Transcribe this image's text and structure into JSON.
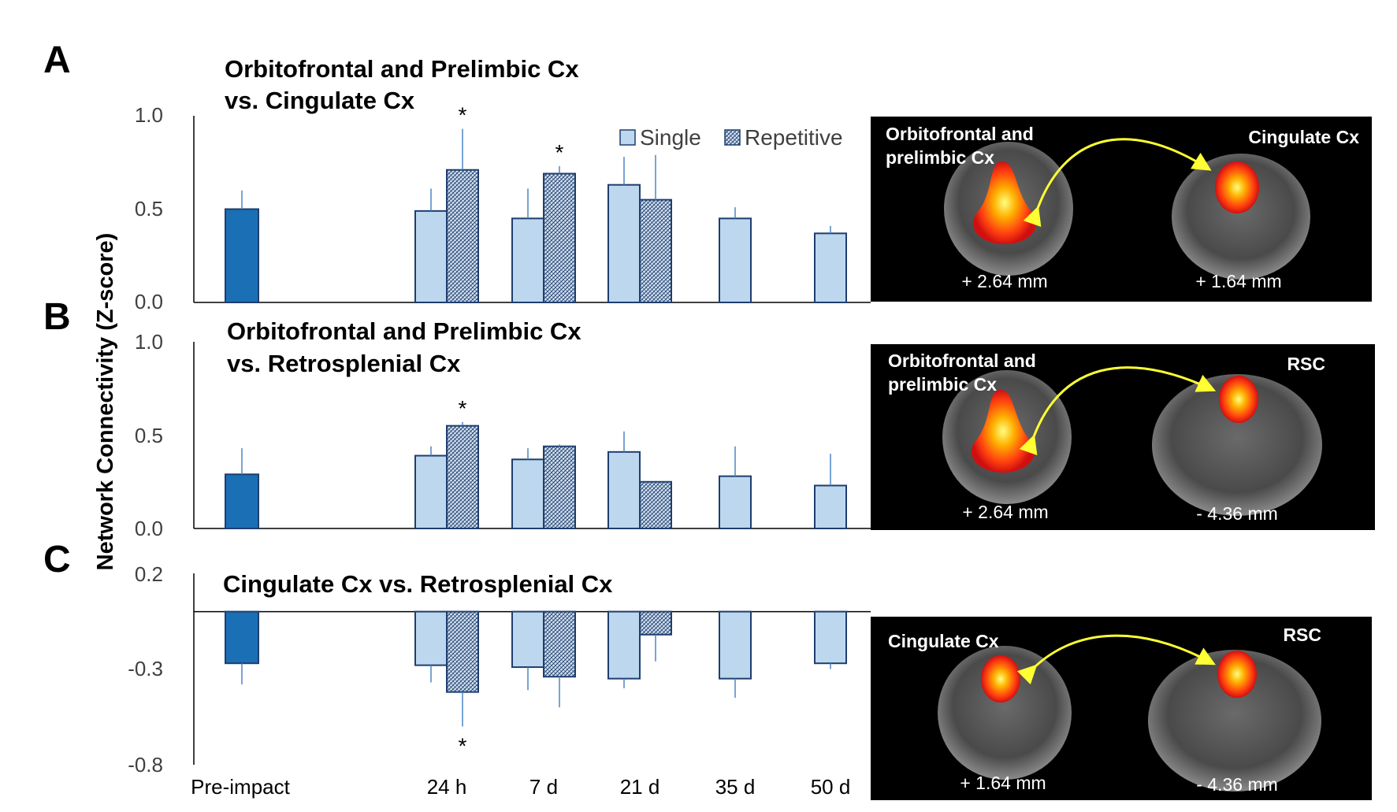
{
  "figure": {
    "y_axis_label": "Network Connectivity (Z-score)",
    "legend": {
      "single_label": "Single",
      "repetitive_label": "Repetitive"
    },
    "x_tick_labels": [
      "Pre-impact",
      "24 h",
      "7 d",
      "21 d",
      "35 d",
      "50 d"
    ]
  },
  "colors": {
    "pre_impact_fill": "#1a6fb5",
    "single_fill": "#bdd7ee",
    "bar_border": "#1f3e6e",
    "error_bar": "#4a86c5",
    "image_bg": "#000000",
    "arrow": "#ffff33"
  },
  "chart_data": [
    {
      "panel": "A",
      "type": "bar",
      "title_lines": [
        "Orbitofrontal and Prelimbic Cx",
        "vs. Cingulate Cx"
      ],
      "categories": [
        "Pre-impact",
        "24 h",
        "7 d",
        "21 d",
        "35 d",
        "50 d"
      ],
      "ylim": [
        0.0,
        1.0
      ],
      "yticks": [
        "1.0",
        "0.5",
        "0.0"
      ],
      "pre_impact": {
        "value": 0.5,
        "err": 0.1
      },
      "series": [
        {
          "name": "Single",
          "values": [
            null,
            0.49,
            0.45,
            0.63,
            0.45,
            0.37
          ],
          "errors": [
            null,
            0.12,
            0.16,
            0.15,
            0.06,
            0.04
          ]
        },
        {
          "name": "Repetitive",
          "values": [
            null,
            0.71,
            0.69,
            0.55,
            null,
            null
          ],
          "errors": [
            null,
            0.22,
            0.04,
            0.24,
            null,
            null
          ]
        }
      ],
      "significance": [
        "",
        "*",
        "*",
        "",
        "",
        ""
      ],
      "legend_position": "top-right",
      "image": {
        "left_label": [
          "Orbitofrontal and",
          "prelimbic Cx"
        ],
        "right_label": "Cingulate Cx",
        "left_mm": "+ 2.64 mm",
        "right_mm": "+ 1.64 mm"
      }
    },
    {
      "panel": "B",
      "type": "bar",
      "title_lines": [
        "Orbitofrontal and Prelimbic Cx",
        "vs. Retrosplenial Cx"
      ],
      "categories": [
        "Pre-impact",
        "24 h",
        "7 d",
        "21 d",
        "35 d",
        "50 d"
      ],
      "ylim": [
        0.0,
        1.0
      ],
      "yticks": [
        "1.0",
        "0.5",
        "0.0"
      ],
      "pre_impact": {
        "value": 0.29,
        "err": 0.14
      },
      "series": [
        {
          "name": "Single",
          "values": [
            null,
            0.39,
            0.37,
            0.41,
            0.28,
            0.23
          ],
          "errors": [
            null,
            0.05,
            0.06,
            0.11,
            0.16,
            0.17
          ]
        },
        {
          "name": "Repetitive",
          "values": [
            null,
            0.55,
            0.44,
            0.25,
            null,
            null
          ],
          "errors": [
            null,
            0.02,
            0.01,
            0.0,
            null,
            null
          ]
        }
      ],
      "significance": [
        "",
        "*",
        "",
        "",
        "",
        ""
      ],
      "image": {
        "left_label": [
          "Orbitofrontal and",
          "prelimbic Cx"
        ],
        "right_label": "RSC",
        "left_mm": "+ 2.64 mm",
        "right_mm": "- 4.36 mm"
      }
    },
    {
      "panel": "C",
      "type": "bar",
      "title_lines": [
        "Cingulate Cx vs. Retrosplenial Cx"
      ],
      "categories": [
        "Pre-impact",
        "24 h",
        "7 d",
        "21 d",
        "35 d",
        "50 d"
      ],
      "ylim": [
        -0.8,
        0.2
      ],
      "yticks": [
        "0.2",
        "-0.3",
        "-0.8"
      ],
      "pre_impact": {
        "value": -0.27,
        "err": 0.11
      },
      "series": [
        {
          "name": "Single",
          "values": [
            null,
            -0.28,
            -0.29,
            -0.35,
            -0.35,
            -0.27
          ],
          "errors": [
            null,
            0.09,
            0.12,
            0.05,
            0.1,
            0.03
          ]
        },
        {
          "name": "Repetitive",
          "values": [
            null,
            -0.42,
            -0.34,
            -0.12,
            null,
            null
          ],
          "errors": [
            null,
            0.18,
            0.16,
            0.14,
            null,
            null
          ]
        }
      ],
      "significance": [
        "",
        "*",
        "",
        "",
        "",
        ""
      ],
      "image": {
        "left_label": [
          "Cingulate Cx"
        ],
        "right_label": "RSC",
        "left_mm": "+ 1.64 mm",
        "right_mm": "- 4.36 mm"
      }
    }
  ]
}
